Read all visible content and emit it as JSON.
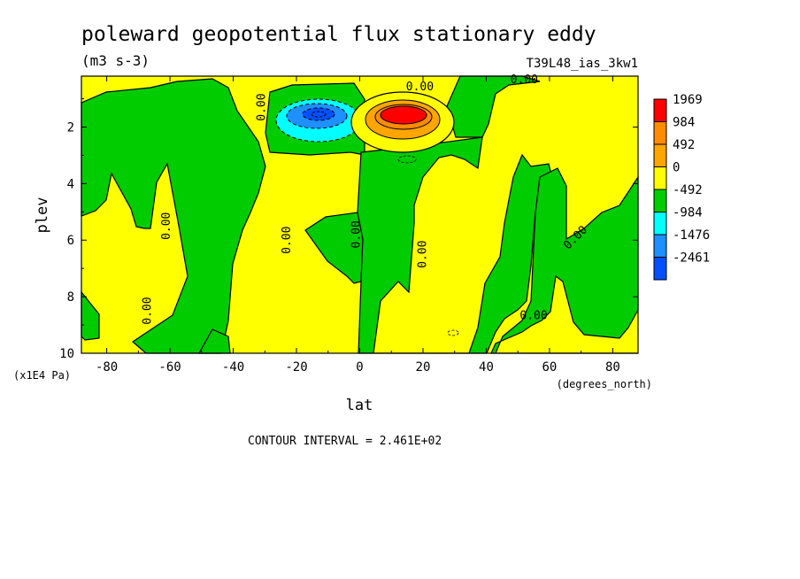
{
  "chart_data": {
    "type": "heatmap",
    "title": "poleward geopotential flux stationary eddy",
    "subtitle": "(m3 s-3)",
    "run_label": "T39L48_ias_3kw1",
    "xlabel": "lat",
    "x_units": "(degrees_north)",
    "ylabel": "plev",
    "y_units": "(x1E4 Pa)",
    "xlim": [
      -88,
      88
    ],
    "ylim": [
      0.2,
      10
    ],
    "y_inverted": true,
    "x_ticks": [
      -80,
      -60,
      -40,
      -20,
      0,
      20,
      40,
      60,
      80
    ],
    "y_ticks": [
      2,
      4,
      6,
      8,
      10
    ],
    "footer": "CONTOUR INTERVAL = 2.461E+02",
    "legend": {
      "placement": "right",
      "labels": [
        "1969",
        "984",
        "492",
        "0",
        "-492",
        "-984",
        "-1476",
        "-2461"
      ],
      "colors": [
        "#ff0000",
        "#ff8c00",
        "#ffa500",
        "#ffff00",
        "#00cc00",
        "#00ffff",
        "#1e90ff",
        "#0050ff"
      ]
    },
    "contour_labels": [
      {
        "text": "0.00",
        "lat": 19,
        "plev": 0.7
      },
      {
        "text": "0.00",
        "lat": 52,
        "plev": 0.45
      },
      {
        "text": "0.00",
        "lat": -30,
        "plev": 1.3
      },
      {
        "text": "0.00",
        "lat": -60,
        "plev": 5.5
      },
      {
        "text": "0.00",
        "lat": -22,
        "plev": 6.0
      },
      {
        "text": "0.00",
        "lat": 0,
        "plev": 5.8
      },
      {
        "text": "0.00",
        "lat": 21,
        "plev": 6.5
      },
      {
        "text": "0.00",
        "lat": 69,
        "plev": 6.0
      },
      {
        "text": "0.00",
        "lat": -66,
        "plev": 8.5
      },
      {
        "text": "0.00",
        "lat": 55,
        "plev": 8.8
      }
    ],
    "features": [
      {
        "sign": "negative",
        "lat": -14,
        "plev": 1.5,
        "min_value": -2461
      },
      {
        "sign": "positive",
        "lat": 13,
        "plev": 1.5,
        "max_value": 1969
      }
    ]
  }
}
